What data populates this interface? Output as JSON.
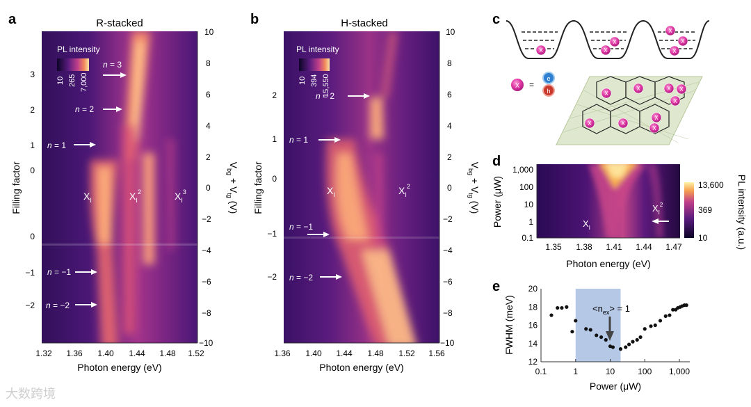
{
  "figure": {
    "panel_a": {
      "letter": "a",
      "title": "R-stacked",
      "colorbar_title": "PL intensity",
      "colorbar_ticks": [
        "10",
        "265",
        "7,000"
      ],
      "x_label": "Photon energy (eV)",
      "x_ticks": [
        "1.32",
        "1.36",
        "1.40",
        "1.44",
        "1.48",
        "1.52"
      ],
      "y_left_label": "Filling factor",
      "y_left_ticks": [
        "3",
        "2",
        "1",
        "0",
        "0",
        "−1",
        "−2"
      ],
      "y_right_label_main": "V",
      "y_right_sub_1": "bg",
      "y_right_plus": " + V",
      "y_right_sub_2": "tg",
      "y_right_unit": " (V)",
      "y_right_ticks": [
        "10",
        "8",
        "6",
        "4",
        "2",
        "0",
        "−2",
        "−4",
        "−6",
        "−8",
        "−10"
      ],
      "arrows": [
        {
          "n": "n",
          "eq": " = 3"
        },
        {
          "n": "n",
          "eq": " = 2"
        },
        {
          "n": "n",
          "eq": " = 1"
        },
        {
          "n": "n",
          "eq": " = −1"
        },
        {
          "n": "n",
          "eq": " = −2"
        }
      ],
      "peaks": [
        {
          "base": "X",
          "sub": "I",
          "sup": ""
        },
        {
          "base": "X",
          "sub": "I",
          "sup": "2"
        },
        {
          "base": "X",
          "sub": "I",
          "sup": "3"
        }
      ]
    },
    "panel_b": {
      "letter": "b",
      "title": "H-stacked",
      "colorbar_title": "PL intensity",
      "colorbar_ticks": [
        "10",
        "394",
        "15,550"
      ],
      "x_label": "Photon energy (eV)",
      "x_ticks": [
        "1.36",
        "1.40",
        "1.44",
        "1.48",
        "1.52",
        "1.56"
      ],
      "y_left_label": "Filling factor",
      "y_left_ticks": [
        "2",
        "1",
        "0",
        "−1",
        "−2"
      ],
      "y_right_label_main": "V",
      "y_right_sub_1": "bg",
      "y_right_plus": " + V",
      "y_right_sub_2": "tg",
      "y_right_unit": " (V)",
      "y_right_ticks": [
        "10",
        "8",
        "6",
        "4",
        "2",
        "0",
        "−2",
        "−4",
        "−6",
        "−8",
        "−10"
      ],
      "arrows": [
        {
          "n": "n",
          "eq": " = 2"
        },
        {
          "n": "n",
          "eq": " = 1"
        },
        {
          "n": "n",
          "eq": " = −1"
        },
        {
          "n": "n",
          "eq": " = −2"
        }
      ],
      "peaks": [
        {
          "base": "X",
          "sub": "I",
          "sup": ""
        },
        {
          "base": "X",
          "sub": "I",
          "sup": "2"
        }
      ]
    },
    "panel_c": {
      "letter": "c",
      "exciton_label": "X",
      "electron_label": "e",
      "hole_label": "h",
      "separator": "="
    },
    "panel_d": {
      "letter": "d",
      "x_label": "Photon energy (eV)",
      "x_ticks": [
        "1.35",
        "1.38",
        "1.41",
        "1.44",
        "1.47"
      ],
      "y_label": "Power (μW)",
      "y_ticks": [
        "1,000",
        "100",
        "10",
        "1",
        "0.1"
      ],
      "colorbar_ticks": [
        "13,600",
        "369",
        "10"
      ],
      "colorbar_label": "PL intensity (a.u.)",
      "peaks": [
        {
          "base": "X",
          "sub": "I",
          "sup": ""
        },
        {
          "base": "X",
          "sub": "I",
          "sup": "2"
        }
      ]
    },
    "panel_e": {
      "letter": "e",
      "annotation_pre": "<n",
      "annotation_sub": "ex",
      "annotation_post": "> = 1"
    },
    "watermark": "大数跨境"
  },
  "chart_data": {
    "type": "scatter",
    "title": "",
    "xlabel": "Power (μW)",
    "ylabel": "FWHM (meV)",
    "xscale": "log",
    "xlim": [
      0.1,
      2000
    ],
    "ylim": [
      12,
      20
    ],
    "x_ticks": [
      "0.1",
      "1",
      "10",
      "100",
      "1,000"
    ],
    "y_ticks": [
      "20",
      "18",
      "16",
      "14",
      "12"
    ],
    "shaded_region": [
      1,
      20
    ],
    "x": [
      0.2,
      0.3,
      0.4,
      0.55,
      0.8,
      1.0,
      2.0,
      2.7,
      4.0,
      5.5,
      7.5,
      10.0,
      12.0,
      20.0,
      28.0,
      35.0,
      45.0,
      60.0,
      75.0,
      100.0,
      150.0,
      200.0,
      280.0,
      400.0,
      520.0,
      650.0,
      780.0,
      900.0,
      1050.0,
      1200.0,
      1400.0,
      1600.0
    ],
    "y": [
      17.1,
      17.9,
      17.9,
      18.0,
      15.3,
      16.5,
      15.6,
      15.5,
      14.9,
      14.7,
      14.4,
      13.7,
      13.6,
      13.4,
      13.6,
      13.9,
      14.2,
      14.4,
      14.7,
      15.6,
      15.9,
      16.0,
      16.5,
      17.0,
      17.1,
      17.7,
      17.7,
      17.9,
      18.0,
      18.1,
      18.2,
      18.2
    ]
  }
}
